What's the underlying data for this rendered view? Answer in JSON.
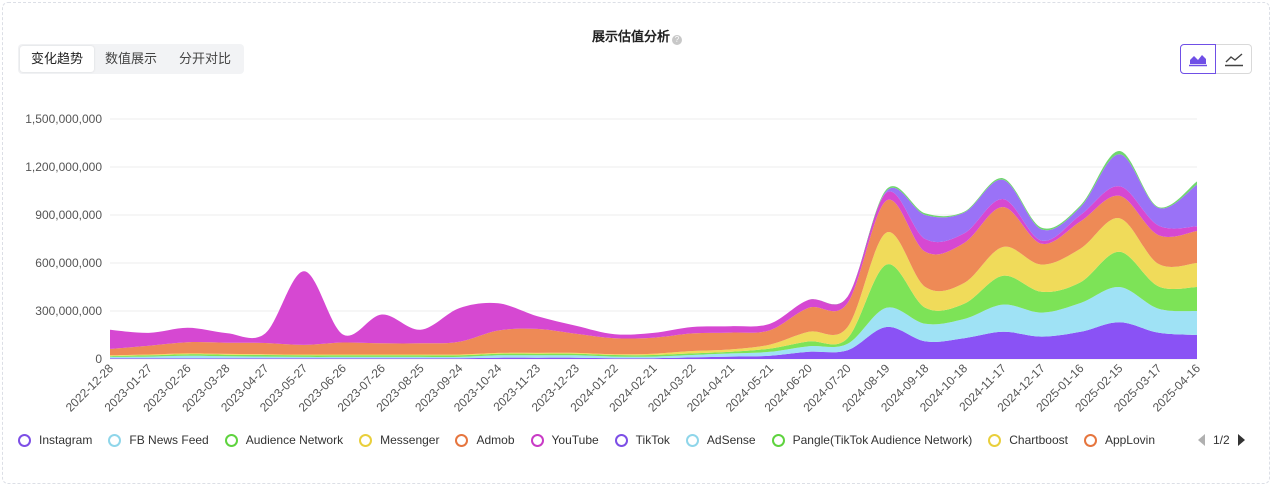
{
  "header": {
    "title": "展示估值分析",
    "help_icon": "question-circle-icon"
  },
  "tabs": [
    {
      "label": "变化趋势",
      "active": true
    },
    {
      "label": "数值展示",
      "active": false
    },
    {
      "label": "分开对比",
      "active": false
    }
  ],
  "chart_types": [
    {
      "icon": "area-chart-icon",
      "active": true
    },
    {
      "icon": "line-chart-icon",
      "active": false
    }
  ],
  "colors": {
    "Instagram": "#8a52f5",
    "FB News Feed": "#9fe2f5",
    "Audience Network": "#7de357",
    "Messenger": "#f0db5a",
    "Admob": "#ee8a56",
    "YouTube": "#d648d2",
    "TikTok": "#9a72f7",
    "Pangle": "#6fd66f"
  },
  "legend": {
    "items": [
      {
        "name": "Instagram",
        "color": "#7d4fe6"
      },
      {
        "name": "FB News Feed",
        "color": "#8fd6ea"
      },
      {
        "name": "Audience Network",
        "color": "#5fd33f"
      },
      {
        "name": "Messenger",
        "color": "#e9cf3c"
      },
      {
        "name": "Admob",
        "color": "#e6763f"
      },
      {
        "name": "YouTube",
        "color": "#c93bc6"
      },
      {
        "name": "TikTok",
        "color": "#7d4fe6"
      },
      {
        "name": "AdSense",
        "color": "#8fd6ea"
      },
      {
        "name": "Pangle(TikTok Audience Network)",
        "color": "#5fd33f"
      },
      {
        "name": "Chartboost",
        "color": "#e9cf3c"
      },
      {
        "name": "AppLovin",
        "color": "#e6763f"
      }
    ],
    "page": "1/2"
  },
  "chart_data": {
    "type": "area",
    "stacked": true,
    "title": "展示估值分析",
    "ylim": [
      0,
      1500000000
    ],
    "y_ticks": [
      0,
      300000000,
      600000000,
      900000000,
      1200000000,
      1500000000
    ],
    "y_tick_labels": [
      "0",
      "300,000,000",
      "600,000,000",
      "900,000,000",
      "1,200,000,000",
      "1,500,000,000"
    ],
    "x": [
      "2022-12-28",
      "2023-01-27",
      "2023-02-26",
      "2023-03-28",
      "2023-04-27",
      "2023-05-27",
      "2023-06-26",
      "2023-07-26",
      "2023-08-25",
      "2023-09-24",
      "2023-10-24",
      "2023-11-23",
      "2023-12-23",
      "2024-01-22",
      "2024-02-21",
      "2024-03-22",
      "2024-04-21",
      "2024-05-21",
      "2024-06-20",
      "2024-07-20",
      "2024-08-19",
      "2024-09-18",
      "2024-10-18",
      "2024-11-17",
      "2024-12-17",
      "2025-01-16",
      "2025-02-15",
      "2025-03-17",
      "2025-04-16"
    ],
    "series": [
      {
        "name": "Instagram",
        "values": [
          5000000,
          5000000,
          5000000,
          5000000,
          5000000,
          5000000,
          5000000,
          5000000,
          5000000,
          5000000,
          8000000,
          8000000,
          8000000,
          5000000,
          5000000,
          10000000,
          15000000,
          20000000,
          45000000,
          55000000,
          200000000,
          110000000,
          130000000,
          170000000,
          140000000,
          170000000,
          230000000,
          165000000,
          150000000
        ]
      },
      {
        "name": "FB News Feed",
        "values": [
          8000000,
          10000000,
          15000000,
          12000000,
          10000000,
          8000000,
          8000000,
          8000000,
          8000000,
          8000000,
          15000000,
          15000000,
          15000000,
          10000000,
          10000000,
          15000000,
          20000000,
          25000000,
          35000000,
          40000000,
          120000000,
          110000000,
          120000000,
          170000000,
          150000000,
          180000000,
          220000000,
          150000000,
          150000000
        ]
      },
      {
        "name": "Audience Network",
        "values": [
          5000000,
          8000000,
          10000000,
          10000000,
          10000000,
          10000000,
          10000000,
          10000000,
          10000000,
          10000000,
          10000000,
          10000000,
          10000000,
          10000000,
          10000000,
          10000000,
          10000000,
          20000000,
          30000000,
          35000000,
          270000000,
          100000000,
          95000000,
          180000000,
          130000000,
          130000000,
          220000000,
          140000000,
          150000000
        ]
      },
      {
        "name": "Messenger",
        "values": [
          5000000,
          5000000,
          5000000,
          5000000,
          5000000,
          5000000,
          5000000,
          5000000,
          5000000,
          5000000,
          5000000,
          5000000,
          5000000,
          5000000,
          8000000,
          15000000,
          15000000,
          25000000,
          60000000,
          70000000,
          200000000,
          130000000,
          130000000,
          180000000,
          170000000,
          210000000,
          210000000,
          140000000,
          150000000
        ]
      },
      {
        "name": "Admob",
        "values": [
          40000000,
          55000000,
          70000000,
          70000000,
          70000000,
          60000000,
          75000000,
          70000000,
          70000000,
          80000000,
          140000000,
          150000000,
          120000000,
          100000000,
          100000000,
          110000000,
          105000000,
          90000000,
          150000000,
          150000000,
          200000000,
          220000000,
          250000000,
          250000000,
          130000000,
          170000000,
          140000000,
          180000000,
          200000000
        ]
      },
      {
        "name": "YouTube",
        "values": [
          120000000,
          80000000,
          90000000,
          60000000,
          60000000,
          460000000,
          50000000,
          180000000,
          85000000,
          210000000,
          170000000,
          80000000,
          50000000,
          25000000,
          30000000,
          40000000,
          40000000,
          40000000,
          50000000,
          40000000,
          50000000,
          80000000,
          60000000,
          50000000,
          20000000,
          40000000,
          60000000,
          60000000,
          30000000
        ]
      },
      {
        "name": "TikTok",
        "values": [
          0,
          0,
          0,
          0,
          0,
          0,
          0,
          0,
          0,
          0,
          0,
          0,
          0,
          0,
          0,
          0,
          0,
          0,
          0,
          0,
          10000000,
          150000000,
          130000000,
          120000000,
          70000000,
          50000000,
          200000000,
          110000000,
          260000000
        ]
      },
      {
        "name": "Pangle",
        "values": [
          0,
          0,
          0,
          0,
          0,
          0,
          0,
          0,
          0,
          0,
          0,
          0,
          0,
          0,
          0,
          0,
          0,
          0,
          0,
          0,
          10000000,
          10000000,
          5000000,
          10000000,
          10000000,
          10000000,
          20000000,
          5000000,
          20000000
        ]
      }
    ]
  }
}
